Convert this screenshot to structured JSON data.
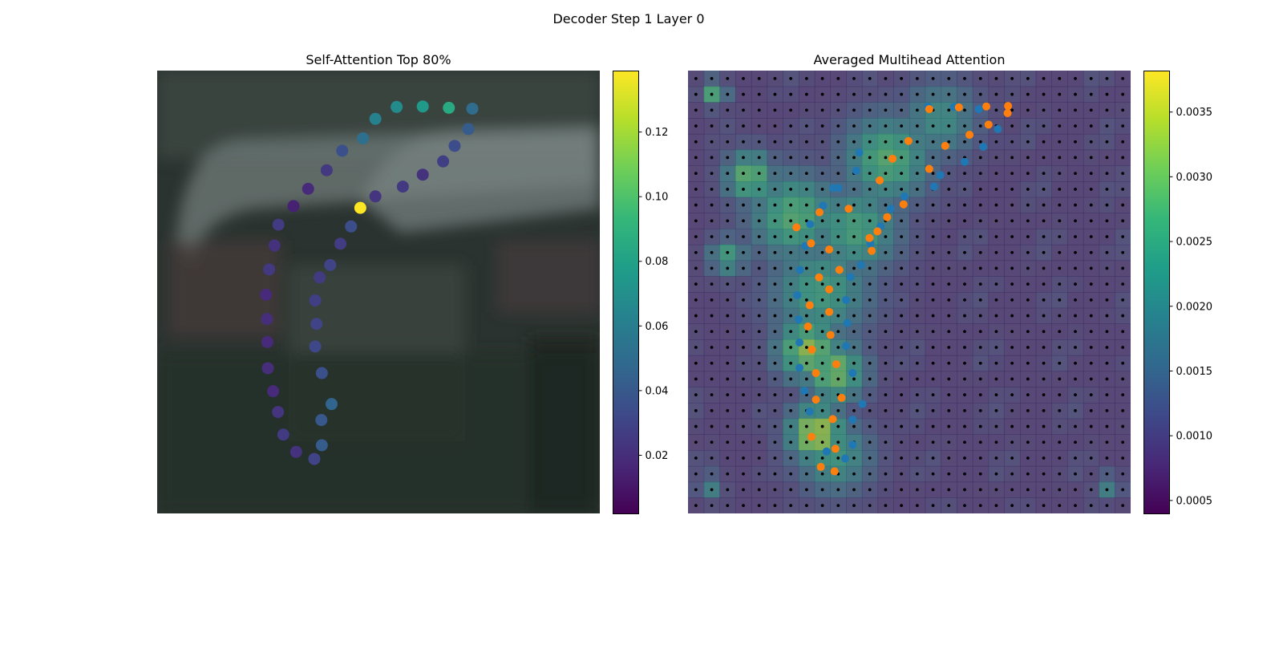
{
  "figure": {
    "suptitle": "Decoder Step 1 Layer 0"
  },
  "left_panel": {
    "title": "Self-Attention Top 80%",
    "colorbar_ticks": [
      "0.02",
      "0.04",
      "0.06",
      "0.08",
      "0.10",
      "0.12"
    ]
  },
  "right_panel": {
    "title": "Averaged Multihead Attention",
    "colorbar_ticks": [
      "0.0005",
      "0.0010",
      "0.0015",
      "0.0020",
      "0.0025",
      "0.0030",
      "0.0035"
    ]
  },
  "colors": {
    "point_blue": "#1f77b4",
    "point_orange": "#ff7f0e",
    "viridis": [
      "#440154",
      "#482878",
      "#3e4989",
      "#31688e",
      "#26828e",
      "#1f9e89",
      "#35b779",
      "#6ece58",
      "#b5de2b",
      "#fde725"
    ]
  },
  "chart_data": [
    {
      "type": "scatter",
      "title": "Self-Attention Top 80%",
      "x_range": [
        0,
        1
      ],
      "y_range": [
        0,
        1
      ],
      "grid": false,
      "colorbar": {
        "min": 0.002,
        "max": 0.139,
        "ticks": [
          0.02,
          0.04,
          0.06,
          0.08,
          0.1,
          0.12
        ],
        "colormap": "viridis"
      },
      "points": [
        {
          "x": 0.712,
          "y": 0.086,
          "v": 0.05
        },
        {
          "x": 0.659,
          "y": 0.084,
          "v": 0.085
        },
        {
          "x": 0.6,
          "y": 0.081,
          "v": 0.075
        },
        {
          "x": 0.541,
          "y": 0.082,
          "v": 0.068
        },
        {
          "x": 0.493,
          "y": 0.109,
          "v": 0.062
        },
        {
          "x": 0.465,
          "y": 0.153,
          "v": 0.052
        },
        {
          "x": 0.418,
          "y": 0.181,
          "v": 0.036
        },
        {
          "x": 0.383,
          "y": 0.225,
          "v": 0.025
        },
        {
          "x": 0.341,
          "y": 0.267,
          "v": 0.018
        },
        {
          "x": 0.308,
          "y": 0.306,
          "v": 0.015
        },
        {
          "x": 0.274,
          "y": 0.348,
          "v": 0.026
        },
        {
          "x": 0.265,
          "y": 0.395,
          "v": 0.022
        },
        {
          "x": 0.253,
          "y": 0.449,
          "v": 0.025
        },
        {
          "x": 0.246,
          "y": 0.506,
          "v": 0.018
        },
        {
          "x": 0.248,
          "y": 0.561,
          "v": 0.02
        },
        {
          "x": 0.249,
          "y": 0.613,
          "v": 0.018
        },
        {
          "x": 0.25,
          "y": 0.672,
          "v": 0.02
        },
        {
          "x": 0.262,
          "y": 0.724,
          "v": 0.018
        },
        {
          "x": 0.273,
          "y": 0.771,
          "v": 0.023
        },
        {
          "x": 0.285,
          "y": 0.822,
          "v": 0.026
        },
        {
          "x": 0.314,
          "y": 0.861,
          "v": 0.022
        },
        {
          "x": 0.355,
          "y": 0.877,
          "v": 0.03
        },
        {
          "x": 0.372,
          "y": 0.846,
          "v": 0.042
        },
        {
          "x": 0.371,
          "y": 0.789,
          "v": 0.04
        },
        {
          "x": 0.394,
          "y": 0.753,
          "v": 0.046
        },
        {
          "x": 0.372,
          "y": 0.683,
          "v": 0.036
        },
        {
          "x": 0.357,
          "y": 0.623,
          "v": 0.032
        },
        {
          "x": 0.36,
          "y": 0.572,
          "v": 0.03
        },
        {
          "x": 0.357,
          "y": 0.519,
          "v": 0.028
        },
        {
          "x": 0.367,
          "y": 0.467,
          "v": 0.026
        },
        {
          "x": 0.391,
          "y": 0.439,
          "v": 0.03
        },
        {
          "x": 0.414,
          "y": 0.391,
          "v": 0.027
        },
        {
          "x": 0.438,
          "y": 0.352,
          "v": 0.035
        },
        {
          "x": 0.459,
          "y": 0.31,
          "v": 0.139
        },
        {
          "x": 0.493,
          "y": 0.284,
          "v": 0.023
        },
        {
          "x": 0.555,
          "y": 0.262,
          "v": 0.025
        },
        {
          "x": 0.6,
          "y": 0.235,
          "v": 0.022
        },
        {
          "x": 0.646,
          "y": 0.205,
          "v": 0.028
        },
        {
          "x": 0.672,
          "y": 0.17,
          "v": 0.034
        },
        {
          "x": 0.703,
          "y": 0.132,
          "v": 0.042
        }
      ]
    },
    {
      "type": "heatmap",
      "title": "Averaged Multihead Attention",
      "grid_size": [
        28,
        28
      ],
      "x_range": [
        0,
        1
      ],
      "y_range": [
        0,
        1
      ],
      "colorbar": {
        "min": 0.0004,
        "max": 0.00382,
        "ticks": [
          0.0005,
          0.001,
          0.0015,
          0.002,
          0.0025,
          0.003,
          0.0035
        ],
        "colormap": "viridis"
      },
      "background_value": 0.0008,
      "hotspots": [
        {
          "x": 0.29,
          "y": 0.82,
          "v": 0.0036,
          "r": 0.045
        },
        {
          "x": 0.27,
          "y": 0.63,
          "v": 0.0033,
          "r": 0.05
        },
        {
          "x": 0.33,
          "y": 0.68,
          "v": 0.0031,
          "r": 0.05
        },
        {
          "x": 0.24,
          "y": 0.33,
          "v": 0.0028,
          "r": 0.07
        },
        {
          "x": 0.14,
          "y": 0.24,
          "v": 0.003,
          "r": 0.04
        },
        {
          "x": 0.45,
          "y": 0.2,
          "v": 0.0028,
          "r": 0.07
        },
        {
          "x": 0.38,
          "y": 0.36,
          "v": 0.0026,
          "r": 0.07
        },
        {
          "x": 0.3,
          "y": 0.5,
          "v": 0.0025,
          "r": 0.08
        },
        {
          "x": 0.33,
          "y": 0.87,
          "v": 0.0024,
          "r": 0.06
        },
        {
          "x": 0.57,
          "y": 0.11,
          "v": 0.0022,
          "r": 0.06
        },
        {
          "x": 0.06,
          "y": 0.05,
          "v": 0.0028,
          "r": 0.02
        },
        {
          "x": 0.09,
          "y": 0.42,
          "v": 0.0025,
          "r": 0.03
        },
        {
          "x": 0.95,
          "y": 0.94,
          "v": 0.002,
          "r": 0.02
        },
        {
          "x": 0.05,
          "y": 0.94,
          "v": 0.002,
          "r": 0.02
        }
      ],
      "series": [
        {
          "name": "",
          "color": "#1f77b4",
          "points": [
            {
              "x": 0.542,
              "y": 0.081
            },
            {
              "x": 0.601,
              "y": 0.082
            },
            {
              "x": 0.657,
              "y": 0.087
            },
            {
              "x": 0.7,
              "y": 0.132
            },
            {
              "x": 0.667,
              "y": 0.172
            },
            {
              "x": 0.625,
              "y": 0.206
            },
            {
              "x": 0.57,
              "y": 0.236
            },
            {
              "x": 0.556,
              "y": 0.262
            },
            {
              "x": 0.489,
              "y": 0.284
            },
            {
              "x": 0.458,
              "y": 0.312
            },
            {
              "x": 0.435,
              "y": 0.352
            },
            {
              "x": 0.412,
              "y": 0.39
            },
            {
              "x": 0.387,
              "y": 0.185
            },
            {
              "x": 0.38,
              "y": 0.226
            },
            {
              "x": 0.34,
              "y": 0.265
            },
            {
              "x": 0.305,
              "y": 0.305
            },
            {
              "x": 0.276,
              "y": 0.347
            },
            {
              "x": 0.265,
              "y": 0.396
            },
            {
              "x": 0.253,
              "y": 0.45
            },
            {
              "x": 0.247,
              "y": 0.507
            },
            {
              "x": 0.25,
              "y": 0.562
            },
            {
              "x": 0.252,
              "y": 0.614
            },
            {
              "x": 0.252,
              "y": 0.671
            },
            {
              "x": 0.263,
              "y": 0.723
            },
            {
              "x": 0.275,
              "y": 0.77
            },
            {
              "x": 0.313,
              "y": 0.86
            },
            {
              "x": 0.355,
              "y": 0.876
            },
            {
              "x": 0.372,
              "y": 0.845
            },
            {
              "x": 0.372,
              "y": 0.788
            },
            {
              "x": 0.394,
              "y": 0.753
            },
            {
              "x": 0.372,
              "y": 0.683
            },
            {
              "x": 0.357,
              "y": 0.622
            },
            {
              "x": 0.36,
              "y": 0.57
            },
            {
              "x": 0.357,
              "y": 0.518
            },
            {
              "x": 0.367,
              "y": 0.466
            },
            {
              "x": 0.391,
              "y": 0.439
            },
            {
              "x": 0.328,
              "y": 0.265
            }
          ]
        },
        {
          "name": "",
          "color": "#ff7f0e",
          "points": [
            {
              "x": 0.545,
              "y": 0.087
            },
            {
              "x": 0.612,
              "y": 0.083
            },
            {
              "x": 0.674,
              "y": 0.081
            },
            {
              "x": 0.723,
              "y": 0.08
            },
            {
              "x": 0.722,
              "y": 0.096
            },
            {
              "x": 0.679,
              "y": 0.122
            },
            {
              "x": 0.636,
              "y": 0.145
            },
            {
              "x": 0.581,
              "y": 0.17
            },
            {
              "x": 0.498,
              "y": 0.159
            },
            {
              "x": 0.462,
              "y": 0.199
            },
            {
              "x": 0.433,
              "y": 0.248
            },
            {
              "x": 0.545,
              "y": 0.222
            },
            {
              "x": 0.487,
              "y": 0.302
            },
            {
              "x": 0.45,
              "y": 0.331
            },
            {
              "x": 0.428,
              "y": 0.363
            },
            {
              "x": 0.41,
              "y": 0.378
            },
            {
              "x": 0.415,
              "y": 0.407
            },
            {
              "x": 0.363,
              "y": 0.312
            },
            {
              "x": 0.297,
              "y": 0.32
            },
            {
              "x": 0.245,
              "y": 0.354
            },
            {
              "x": 0.278,
              "y": 0.39
            },
            {
              "x": 0.319,
              "y": 0.404
            },
            {
              "x": 0.342,
              "y": 0.45
            },
            {
              "x": 0.296,
              "y": 0.467
            },
            {
              "x": 0.319,
              "y": 0.494
            },
            {
              "x": 0.275,
              "y": 0.53
            },
            {
              "x": 0.319,
              "y": 0.545
            },
            {
              "x": 0.271,
              "y": 0.578
            },
            {
              "x": 0.322,
              "y": 0.597
            },
            {
              "x": 0.28,
              "y": 0.63
            },
            {
              "x": 0.335,
              "y": 0.663
            },
            {
              "x": 0.289,
              "y": 0.683
            },
            {
              "x": 0.289,
              "y": 0.743
            },
            {
              "x": 0.347,
              "y": 0.739
            },
            {
              "x": 0.327,
              "y": 0.787
            },
            {
              "x": 0.279,
              "y": 0.827
            },
            {
              "x": 0.333,
              "y": 0.854
            },
            {
              "x": 0.3,
              "y": 0.895
            },
            {
              "x": 0.331,
              "y": 0.905
            }
          ]
        }
      ]
    }
  ]
}
